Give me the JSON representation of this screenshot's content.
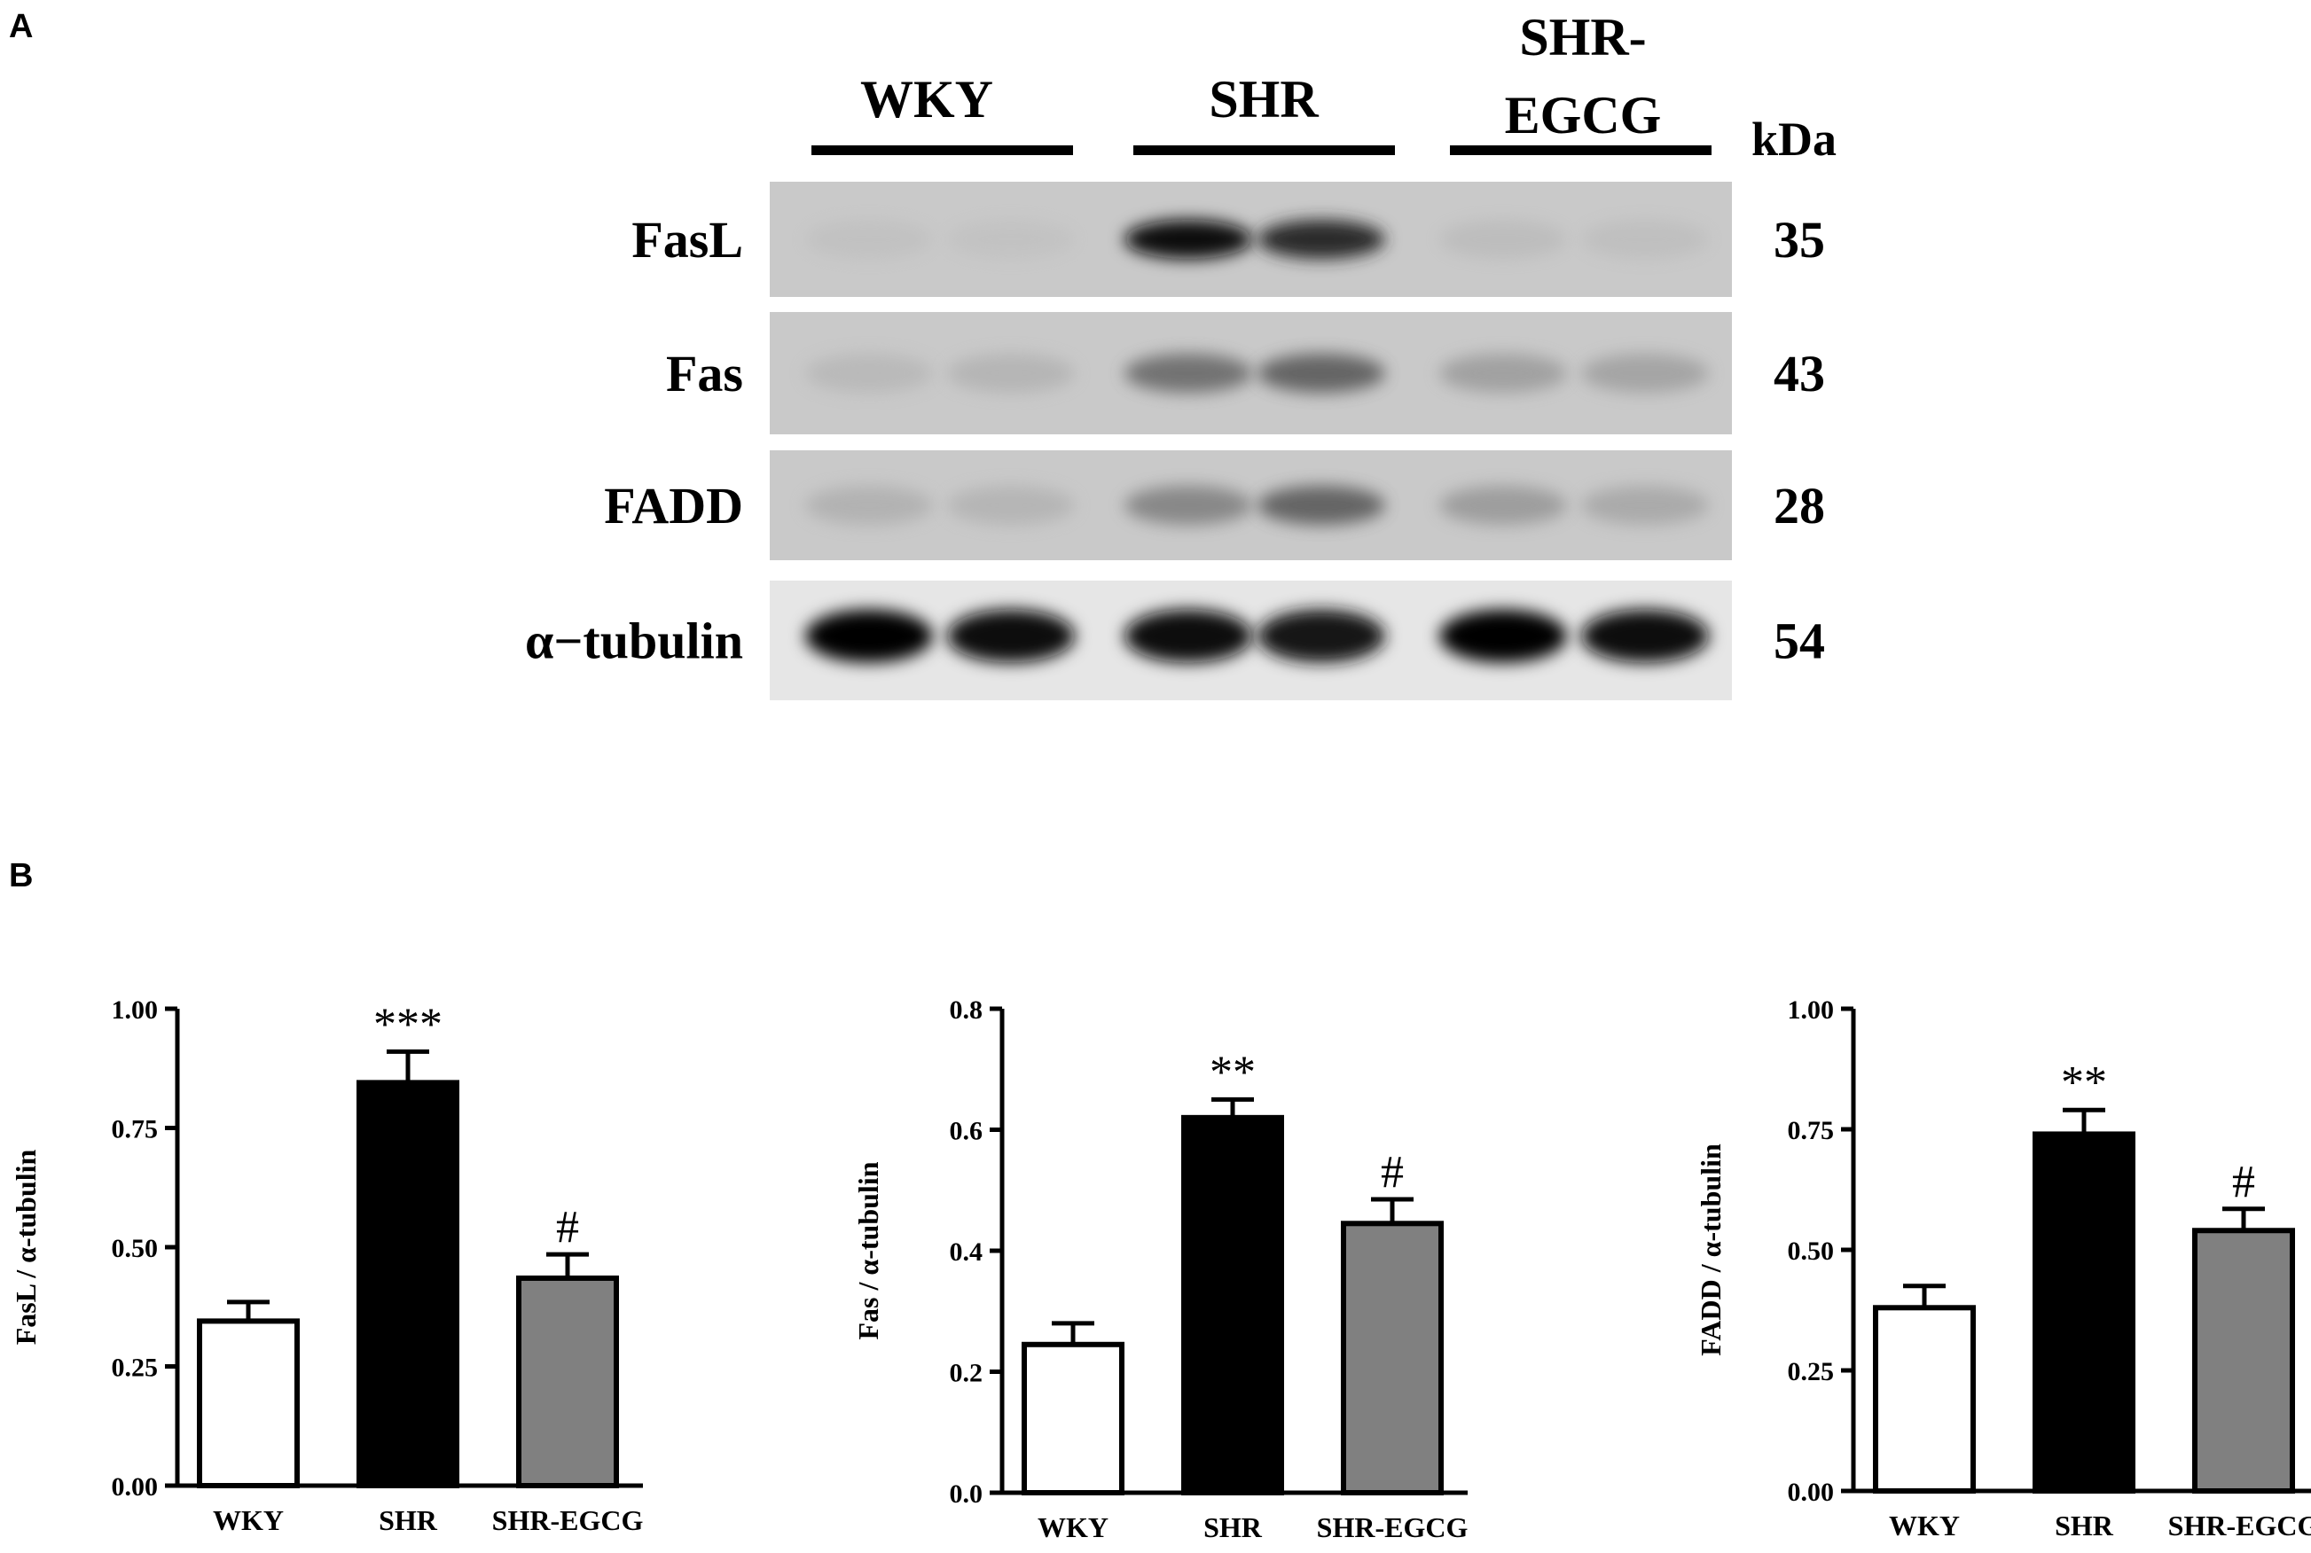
{
  "panels": {
    "a": "A",
    "b": "B"
  },
  "blot": {
    "groups": [
      {
        "lines": [
          "WKY"
        ]
      },
      {
        "lines": [
          "SHR"
        ]
      },
      {
        "lines": [
          "SHR-",
          "EGCG"
        ]
      }
    ],
    "kda_label": "kDa",
    "rows": [
      {
        "label": "FasL",
        "kda": "35",
        "intensity": [
          0.08,
          0.07,
          0.95,
          0.78,
          0.12,
          0.1
        ]
      },
      {
        "label": "Fas",
        "kda": "43",
        "intensity": [
          0.15,
          0.18,
          0.5,
          0.55,
          0.3,
          0.28
        ]
      },
      {
        "label": "FADD",
        "kda": "28",
        "intensity": [
          0.2,
          0.18,
          0.42,
          0.55,
          0.32,
          0.25
        ]
      },
      {
        "label": "α−tubulin",
        "kda": "54",
        "intensity": [
          1.0,
          0.95,
          0.92,
          0.9,
          0.97,
          0.93
        ]
      }
    ]
  },
  "chart_data": [
    {
      "type": "bar",
      "categories": [
        "WKY",
        "SHR",
        "SHR-EGCG"
      ],
      "values": [
        0.345,
        0.845,
        0.435
      ],
      "errors": [
        0.04,
        0.065,
        0.05
      ],
      "annotations": [
        "",
        "***",
        "#"
      ],
      "ylabel": "FasL / α-tubulin",
      "ylim": [
        0,
        1.0
      ],
      "yticks": [
        "0.00",
        "0.25",
        "0.50",
        "0.75",
        "1.00"
      ],
      "bar_colors": [
        "#ffffff",
        "#000000",
        "#808080"
      ]
    },
    {
      "type": "bar",
      "categories": [
        "WKY",
        "SHR",
        "SHR-EGCG"
      ],
      "values": [
        0.245,
        0.62,
        0.445
      ],
      "errors": [
        0.035,
        0.03,
        0.04
      ],
      "annotations": [
        "",
        "**",
        "#"
      ],
      "ylabel": "Fas / α-tubulin",
      "ylim": [
        0,
        0.8
      ],
      "yticks": [
        "0.0",
        "0.2",
        "0.4",
        "0.6",
        "0.8"
      ],
      "bar_colors": [
        "#ffffff",
        "#000000",
        "#808080"
      ]
    },
    {
      "type": "bar",
      "categories": [
        "WKY",
        "SHR",
        "SHR-EGCG"
      ],
      "values": [
        0.38,
        0.74,
        0.54
      ],
      "errors": [
        0.045,
        0.05,
        0.045
      ],
      "annotations": [
        "",
        "**",
        "#"
      ],
      "ylabel": "FADD / α-tubulin",
      "ylim": [
        0,
        1.0
      ],
      "yticks": [
        "0.00",
        "0.25",
        "0.50",
        "0.75",
        "1.00"
      ],
      "bar_colors": [
        "#ffffff",
        "#000000",
        "#808080"
      ]
    }
  ]
}
